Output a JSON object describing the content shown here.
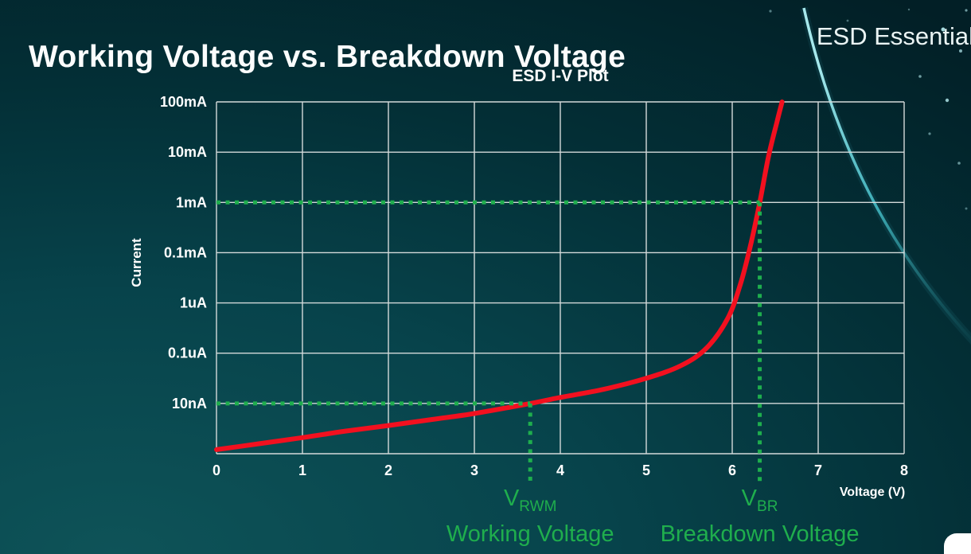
{
  "page": {
    "title": "Working Voltage vs. Breakdown Voltage",
    "brand": "ESD Essential"
  },
  "chart_data": {
    "type": "line",
    "title": "ESD I-V Plot",
    "xlabel": "Voltage (V)",
    "ylabel": "Current",
    "x_ticks": [
      "0",
      "1",
      "2",
      "3",
      "4",
      "5",
      "6",
      "7",
      "8"
    ],
    "x_range": [
      0,
      8
    ],
    "y_scale": "log",
    "y_tick_labels": [
      "100mA",
      "10mA",
      "1mA",
      "0.1mA",
      "1uA",
      "0.1uA",
      "10nA"
    ],
    "y_decades_total": 7,
    "y_encoding": "point y = decades above bottom gridline (10nA=1, 1mA=5, 100mA=7)",
    "grid": true,
    "series": [
      {
        "name": "ESD I-V curve",
        "color": "#f2101f",
        "points": [
          [
            0,
            0.08
          ],
          [
            0.5,
            0.2
          ],
          [
            1,
            0.32
          ],
          [
            1.5,
            0.45
          ],
          [
            2,
            0.56
          ],
          [
            2.5,
            0.68
          ],
          [
            3,
            0.8
          ],
          [
            3.65,
            1.0
          ],
          [
            4,
            1.12
          ],
          [
            4.5,
            1.28
          ],
          [
            5,
            1.5
          ],
          [
            5.4,
            1.75
          ],
          [
            5.7,
            2.1
          ],
          [
            5.95,
            2.7
          ],
          [
            6.1,
            3.4
          ],
          [
            6.22,
            4.2
          ],
          [
            6.32,
            5.0
          ],
          [
            6.42,
            5.9
          ],
          [
            6.52,
            6.6
          ],
          [
            6.58,
            7.0
          ]
        ]
      }
    ],
    "annotations": [
      {
        "id": "vrwm",
        "x": 3.65,
        "y_decade": 1,
        "y_label": "10nA",
        "symbol": "V",
        "subscript": "RWM",
        "caption": "Working Voltage",
        "color": "#1fae4d"
      },
      {
        "id": "vbr",
        "x": 6.32,
        "y_decade": 5,
        "y_label": "1mA",
        "symbol": "V",
        "subscript": "BR",
        "caption": "Breakdown Voltage",
        "color": "#1fae4d"
      }
    ],
    "colors": {
      "grid": "#d4dada",
      "curve": "#f2101f",
      "guides": "#1fae4d",
      "text": "#ffffff"
    }
  }
}
